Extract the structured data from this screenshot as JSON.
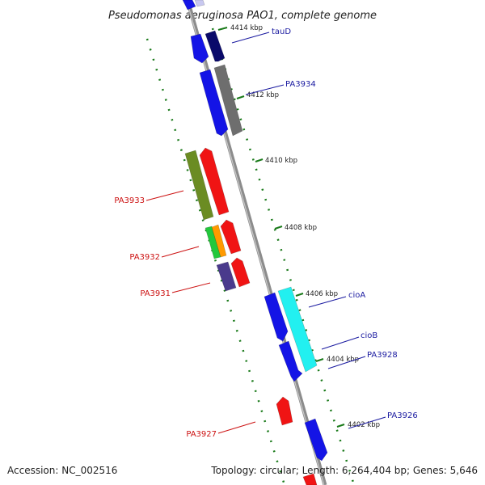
{
  "title": "Pseudomonas aeruginosa PAO1, complete genome",
  "footer": {
    "accession": "Accession: NC_002516",
    "summary": "Topology: circular; Length: 6,264,404 bp; Genes: 5,646"
  },
  "colors": {
    "backbone": "#8c8c8c",
    "tick": "#1a7a1a",
    "label_forward": "#1a1aa0",
    "label_reverse": "#cc1111",
    "blue": "#1414e6",
    "navy": "#0a0a6a",
    "gray": "#6e6e6e",
    "olive": "#6b8c23",
    "red": "#f01414",
    "green": "#22c83c",
    "orange": "#ff9a00",
    "purple": "#4a3a8c",
    "cyan": "#22f0f0"
  },
  "scale": {
    "unit": "kbp",
    "ticks": [
      {
        "label": "4414 kbp",
        "pos": 4414
      },
      {
        "label": "4412 kbp",
        "pos": 4412
      },
      {
        "label": "4410 kbp",
        "pos": 4410
      },
      {
        "label": "4408 kbp",
        "pos": 4408
      },
      {
        "label": "4406 kbp",
        "pos": 4406
      },
      {
        "label": "4404 kbp",
        "pos": 4404
      },
      {
        "label": "4402 kbp",
        "pos": 4402
      }
    ]
  },
  "labels": [
    {
      "name": "tauD",
      "strand": "forward"
    },
    {
      "name": "PA3934",
      "strand": "forward"
    },
    {
      "name": "PA3933",
      "strand": "reverse"
    },
    {
      "name": "PA3932",
      "strand": "reverse"
    },
    {
      "name": "PA3931",
      "strand": "reverse"
    },
    {
      "name": "cioA",
      "strand": "forward"
    },
    {
      "name": "cioB",
      "strand": "forward"
    },
    {
      "name": "PA3928",
      "strand": "forward"
    },
    {
      "name": "PA3927",
      "strand": "reverse"
    },
    {
      "name": "PA3926",
      "strand": "forward"
    }
  ]
}
